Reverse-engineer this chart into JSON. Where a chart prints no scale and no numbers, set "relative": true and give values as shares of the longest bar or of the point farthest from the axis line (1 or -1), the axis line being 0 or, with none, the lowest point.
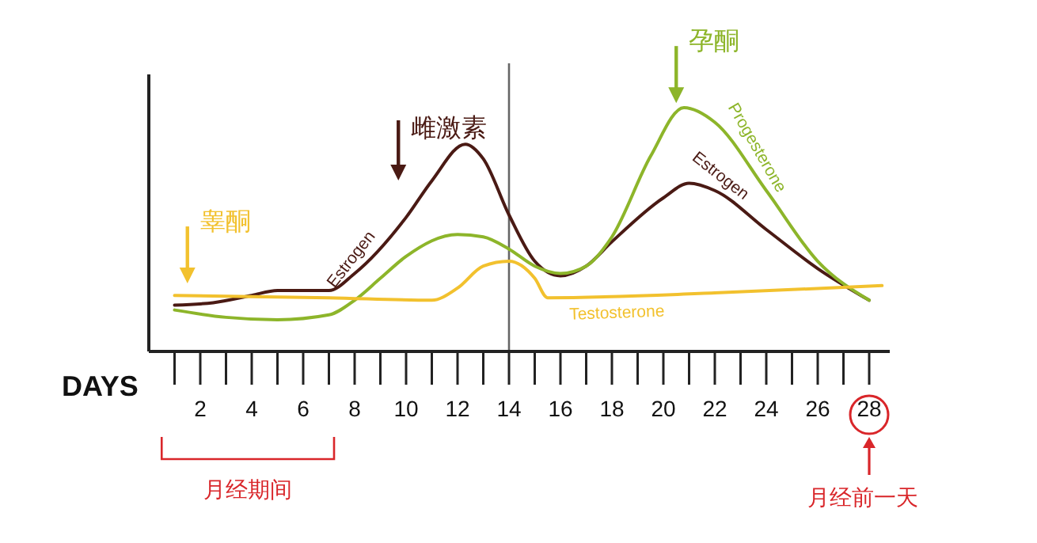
{
  "chart_data": {
    "type": "line",
    "relative": true,
    "xlabel": "DAYS",
    "xlim": [
      0,
      28.8
    ],
    "xticks": [
      2,
      4,
      6,
      8,
      10,
      12,
      14,
      16,
      18,
      20,
      22,
      24,
      26,
      28
    ],
    "series": [
      {
        "name": "Estrogen",
        "color": "#4a1a14",
        "x": [
          1,
          2.5,
          4,
          5,
          7,
          8,
          10,
          11,
          12.3,
          13,
          14,
          15,
          16,
          17,
          18,
          20,
          21,
          22,
          24,
          26,
          28
        ],
        "values": [
          0.19,
          0.2,
          0.23,
          0.25,
          0.25,
          0.32,
          0.55,
          0.7,
          0.85,
          0.79,
          0.56,
          0.37,
          0.31,
          0.35,
          0.45,
          0.63,
          0.69,
          0.66,
          0.5,
          0.34,
          0.21
        ]
      },
      {
        "name": "Progesterone",
        "color": "#8db52a",
        "x": [
          1,
          3,
          5,
          7,
          8,
          9,
          10,
          12,
          13,
          14,
          15,
          16,
          17,
          18,
          19.5,
          20.8,
          22,
          24,
          26,
          28
        ],
        "values": [
          0.17,
          0.14,
          0.13,
          0.15,
          0.21,
          0.3,
          0.39,
          0.48,
          0.47,
          0.42,
          0.35,
          0.32,
          0.35,
          0.47,
          0.8,
          1,
          0.94,
          0.66,
          0.37,
          0.21
        ]
      },
      {
        "name": "Testosterone",
        "color": "#f2c12e",
        "x": [
          1,
          7,
          11,
          12,
          13,
          14,
          15,
          15.5,
          22,
          28.5
        ],
        "values": [
          0.23,
          0.22,
          0.21,
          0.26,
          0.35,
          0.37,
          0.3,
          0.22,
          0.24,
          0.27
        ]
      }
    ],
    "ref_lines": [
      {
        "axis": "x",
        "value": 14,
        "color": "#666666"
      }
    ],
    "annotations": [
      "雌激素",
      {
        "text": "孕酮",
        "x": 20.5,
        "y": 0.98
      },
      {
        "text": "睾酮",
        "x": 1.5,
        "y": 0.24
      },
      "月经期间",
      "月经前一天"
    ],
    "grid": false,
    "legend": false,
    "marker": "none",
    "line_style": "solid"
  }
}
